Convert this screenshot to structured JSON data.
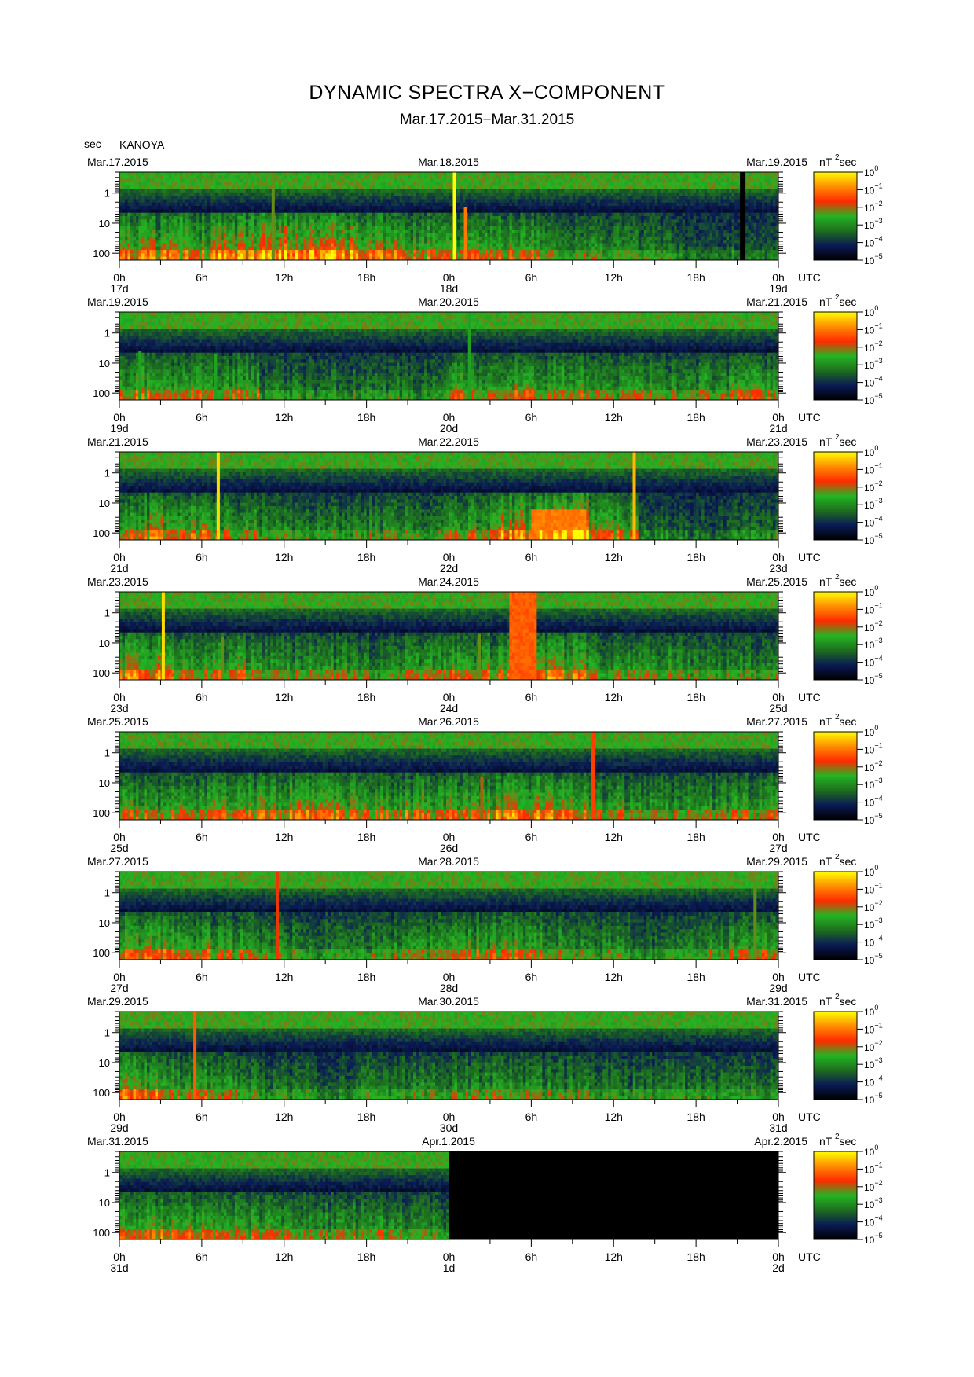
{
  "title": "DYNAMIC SPECTRA X−COMPONENT",
  "subtitle": "Mar.17.2015−Mar.31.2015",
  "y_unit_label": "sec",
  "station": "KANOYA",
  "colorbar_unit": {
    "base": "nT",
    "sup": "2",
    "tail": "sec"
  },
  "colorbar_ticks": [
    {
      "base": "10",
      "exp": "0"
    },
    {
      "base": "10",
      "exp": "−1"
    },
    {
      "base": "10",
      "exp": "−2"
    },
    {
      "base": "10",
      "exp": "−3"
    },
    {
      "base": "10",
      "exp": "−4"
    },
    {
      "base": "10",
      "exp": "−5"
    }
  ],
  "colors": {
    "scale": [
      "#000000",
      "#0a1a55",
      "#1e6e1e",
      "#23b523",
      "#ff2a00",
      "#ff8c00",
      "#ffff00"
    ]
  },
  "chart_data": [
    {
      "type": "heatmap",
      "top_date": "Mar.17.2015",
      "mid_date": "Mar.18.2015",
      "end_date": "Mar.19.2015",
      "x_tick_labels": [
        "0h",
        "6h",
        "12h",
        "18h",
        "0h",
        "6h",
        "12h",
        "18h",
        "0h"
      ],
      "day_labels": [
        "17d",
        "18d",
        "19d"
      ],
      "x_unit": "UTC",
      "y_tick_labels": [
        "1",
        "10",
        "100"
      ],
      "y_axis_scale": "log",
      "activity": [
        0.55,
        0.55,
        0.65,
        0.75,
        0.7,
        0.55,
        0.5,
        0.45,
        0.5,
        0.35,
        0.35,
        0.3,
        0.2,
        0.25
      ],
      "spikes": [
        {
          "hour": 11.2,
          "top_period": 0.2,
          "level": 0.55
        },
        {
          "hour": 24.4,
          "top_period": 0.2,
          "level": 1.0
        },
        {
          "hour": 25.2,
          "top_period": 3,
          "level": 0.8
        },
        {
          "hour": 4.5,
          "top_period": 6,
          "level": 0.5
        }
      ],
      "bands": [],
      "black_spans": [
        {
          "start_hour": 45.2,
          "end_hour": 45.6
        }
      ]
    },
    {
      "type": "heatmap",
      "top_date": "Mar.19.2015",
      "mid_date": "Mar.20.2015",
      "end_date": "Mar.21.2015",
      "x_tick_labels": [
        "0h",
        "6h",
        "12h",
        "18h",
        "0h",
        "6h",
        "12h",
        "18h",
        "0h"
      ],
      "day_labels": [
        "19d",
        "20d",
        "21d"
      ],
      "x_unit": "UTC",
      "y_tick_labels": [
        "1",
        "10",
        "100"
      ],
      "y_axis_scale": "log",
      "activity": [
        0.5,
        0.5,
        0.45,
        0.3,
        0.3,
        0.3,
        0.3,
        0.45,
        0.5,
        0.45,
        0.4,
        0.4,
        0.4,
        0.45
      ],
      "spikes": [
        {
          "hour": 1.5,
          "top_period": 4,
          "level": 0.45
        },
        {
          "hour": 7.0,
          "top_period": 5,
          "level": 0.45
        },
        {
          "hour": 25.5,
          "top_period": 0.2,
          "level": 0.45
        }
      ],
      "bands": [],
      "black_spans": []
    },
    {
      "type": "heatmap",
      "top_date": "Mar.21.2015",
      "mid_date": "Mar.22.2015",
      "end_date": "Mar.23.2015",
      "x_tick_labels": [
        "0h",
        "6h",
        "12h",
        "18h",
        "0h",
        "6h",
        "12h",
        "18h",
        "0h"
      ],
      "day_labels": [
        "21d",
        "22d",
        "23d"
      ],
      "x_unit": "UTC",
      "y_tick_labels": [
        "1",
        "10",
        "100"
      ],
      "y_axis_scale": "log",
      "activity": [
        0.55,
        0.55,
        0.45,
        0.35,
        0.35,
        0.35,
        0.35,
        0.45,
        0.65,
        0.75,
        0.5,
        0.25,
        0.2,
        0.3
      ],
      "spikes": [
        {
          "hour": 7.2,
          "top_period": 0.2,
          "level": 0.95
        },
        {
          "hour": 37.5,
          "top_period": 0.2,
          "level": 0.9
        }
      ],
      "bands": [
        {
          "start_hour": 30,
          "end_hour": 34,
          "top_period": 15,
          "level": 0.8
        }
      ],
      "black_spans": []
    },
    {
      "type": "heatmap",
      "top_date": "Mar.23.2015",
      "mid_date": "Mar.24.2015",
      "end_date": "Mar.25.2015",
      "x_tick_labels": [
        "0h",
        "6h",
        "12h",
        "18h",
        "0h",
        "6h",
        "12h",
        "18h",
        "0h"
      ],
      "day_labels": [
        "23d",
        "24d",
        "25d"
      ],
      "x_unit": "UTC",
      "y_tick_labels": [
        "1",
        "10",
        "100"
      ],
      "y_axis_scale": "log",
      "activity": [
        0.6,
        0.5,
        0.5,
        0.4,
        0.4,
        0.35,
        0.4,
        0.5,
        0.5,
        0.55,
        0.4,
        0.4,
        0.35,
        0.35
      ],
      "spikes": [
        {
          "hour": 3.2,
          "top_period": 0.2,
          "level": 0.95
        },
        {
          "hour": 7.5,
          "top_period": 6,
          "level": 0.55
        },
        {
          "hour": 26.2,
          "top_period": 5,
          "level": 0.55
        }
      ],
      "bands": [
        {
          "start_hour": 28.5,
          "end_hour": 30.4,
          "top_period": 0.2,
          "level": 0.75
        }
      ],
      "black_spans": []
    },
    {
      "type": "heatmap",
      "top_date": "Mar.25.2015",
      "mid_date": "Mar.26.2015",
      "end_date": "Mar.27.2015",
      "x_tick_labels": [
        "0h",
        "6h",
        "12h",
        "18h",
        "0h",
        "6h",
        "12h",
        "18h",
        "0h"
      ],
      "day_labels": [
        "25d",
        "26d",
        "27d"
      ],
      "x_unit": "UTC",
      "y_tick_labels": [
        "1",
        "10",
        "100"
      ],
      "y_axis_scale": "log",
      "activity": [
        0.45,
        0.45,
        0.5,
        0.55,
        0.55,
        0.5,
        0.5,
        0.55,
        0.6,
        0.6,
        0.45,
        0.4,
        0.4,
        0.45
      ],
      "spikes": [
        {
          "hour": 34.5,
          "top_period": 0.2,
          "level": 0.7
        },
        {
          "hour": 26.4,
          "top_period": 6,
          "level": 0.6
        }
      ],
      "bands": [],
      "black_spans": []
    },
    {
      "type": "heatmap",
      "top_date": "Mar.27.2015",
      "mid_date": "Mar.28.2015",
      "end_date": "Mar.29.2015",
      "x_tick_labels": [
        "0h",
        "6h",
        "12h",
        "18h",
        "0h",
        "6h",
        "12h",
        "18h",
        "0h"
      ],
      "day_labels": [
        "27d",
        "28d",
        "29d"
      ],
      "x_unit": "UTC",
      "y_tick_labels": [
        "1",
        "10",
        "100"
      ],
      "y_axis_scale": "log",
      "activity": [
        0.5,
        0.5,
        0.45,
        0.35,
        0.3,
        0.35,
        0.4,
        0.45,
        0.5,
        0.4,
        0.35,
        0.3,
        0.4,
        0.45
      ],
      "spikes": [
        {
          "hour": 11.5,
          "top_period": 0.2,
          "level": 0.65
        },
        {
          "hour": 46.3,
          "top_period": 0.2,
          "level": 0.55
        }
      ],
      "bands": [],
      "black_spans": []
    },
    {
      "type": "heatmap",
      "top_date": "Mar.29.2015",
      "mid_date": "Mar.30.2015",
      "end_date": "Mar.31.2015",
      "x_tick_labels": [
        "0h",
        "6h",
        "12h",
        "18h",
        "0h",
        "6h",
        "12h",
        "18h",
        "0h"
      ],
      "day_labels": [
        "29d",
        "30d",
        "31d"
      ],
      "x_unit": "UTC",
      "y_tick_labels": [
        "1",
        "10",
        "100"
      ],
      "y_axis_scale": "log",
      "activity": [
        0.55,
        0.45,
        0.4,
        0.3,
        0.25,
        0.3,
        0.35,
        0.4,
        0.4,
        0.35,
        0.3,
        0.3,
        0.3,
        0.3
      ],
      "spikes": [
        {
          "hour": 5.5,
          "top_period": 0.2,
          "level": 0.75
        }
      ],
      "bands": [],
      "black_spans": []
    },
    {
      "type": "heatmap",
      "top_date": "Mar.31.2015",
      "mid_date": "Apr.1.2015",
      "end_date": "Apr.2.2015",
      "x_tick_labels": [
        "0h",
        "6h",
        "12h",
        "18h",
        "0h",
        "6h",
        "12h",
        "18h",
        "0h"
      ],
      "day_labels": [
        "31d",
        "1d",
        "2d"
      ],
      "x_unit": "UTC",
      "y_tick_labels": [
        "1",
        "10",
        "100"
      ],
      "y_axis_scale": "log",
      "activity": [
        0.5,
        0.45,
        0.4,
        0.35,
        0.35,
        0.4,
        0.45
      ],
      "spikes": [],
      "bands": [],
      "black_spans": [
        {
          "start_hour": 24,
          "end_hour": 48
        }
      ]
    }
  ]
}
